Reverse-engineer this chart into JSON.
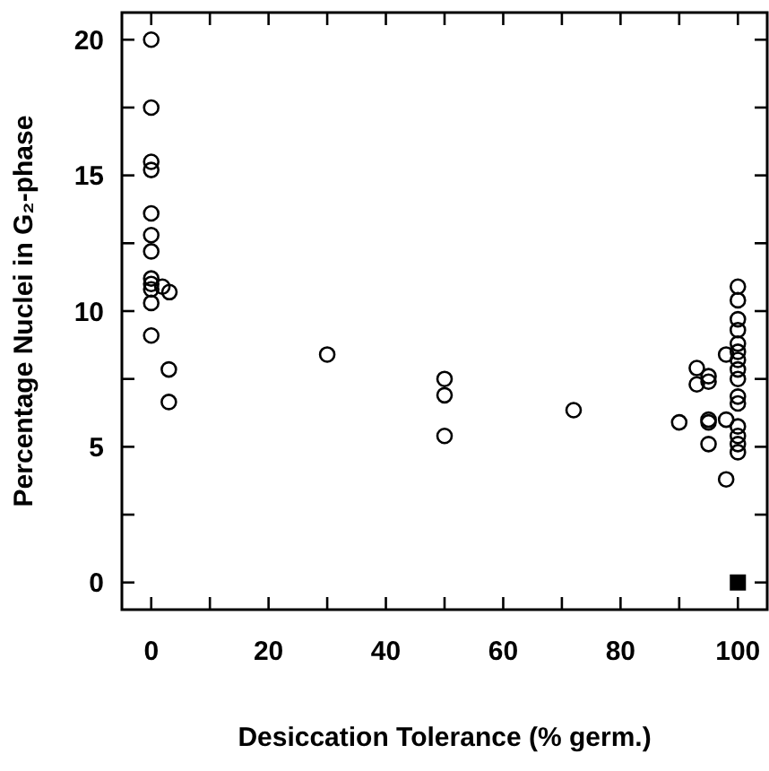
{
  "chart_data": {
    "type": "scatter",
    "xlabel": "Desiccation Tolerance (% germ.)",
    "ylabel": "Percentage Nuclei in G₂-phase",
    "xlim": [
      -5,
      105
    ],
    "ylim": [
      -1,
      21
    ],
    "xticks": [
      0,
      {
        "value": 10,
        "label": null
      },
      20,
      {
        "value": 30,
        "label": null
      },
      40,
      {
        "value": 50,
        "label": null
      },
      60,
      {
        "value": 70,
        "label": null
      },
      80,
      {
        "value": 90,
        "label": null
      },
      100
    ],
    "yticks": [
      0,
      {
        "value": 2.5,
        "label": null
      },
      5,
      {
        "value": 7.5,
        "label": null
      },
      10,
      {
        "value": 12.5,
        "label": null
      },
      15,
      {
        "value": 17.5,
        "label": null
      },
      20
    ],
    "grid": false,
    "series": [
      {
        "color": "#000000",
        "marker": "circle",
        "x": [
          0,
          0,
          0,
          0,
          0,
          0,
          0,
          0,
          0,
          0,
          0,
          0,
          1.9,
          3.1,
          3,
          3,
          30,
          50,
          50,
          50,
          72,
          90,
          93,
          93,
          95,
          95,
          95,
          95,
          95,
          98,
          98,
          98,
          100,
          100,
          100,
          100,
          100,
          100,
          100,
          100,
          100,
          100,
          100,
          100,
          100,
          100,
          100
        ],
        "values": [
          20,
          17.5,
          15.5,
          15.2,
          13.6,
          12.8,
          12.2,
          11.2,
          11,
          10.8,
          10.3,
          9.1,
          10.9,
          10.7,
          7.85,
          6.65,
          8.4,
          7.5,
          6.9,
          5.4,
          6.35,
          5.9,
          7.9,
          7.3,
          7.6,
          7.4,
          6,
          5.9,
          5.1,
          3.8,
          6,
          8.4,
          10.9,
          10.4,
          9.7,
          9.3,
          8.8,
          8.5,
          8.2,
          7.85,
          7.5,
          6.85,
          6.6,
          5.75,
          5.4,
          5.1,
          4.8
        ]
      },
      {
        "color": "#000000",
        "marker": "square",
        "x": [
          100
        ],
        "values": [
          0
        ]
      }
    ]
  }
}
